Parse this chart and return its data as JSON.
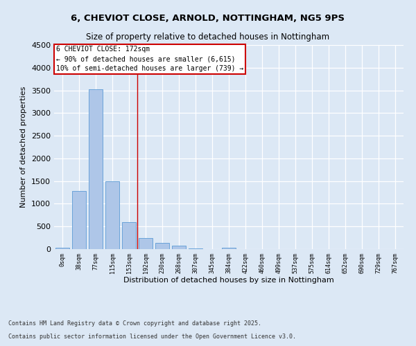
{
  "title1": "6, CHEVIOT CLOSE, ARNOLD, NOTTINGHAM, NG5 9PS",
  "title2": "Size of property relative to detached houses in Nottingham",
  "xlabel": "Distribution of detached houses by size in Nottingham",
  "ylabel": "Number of detached properties",
  "bar_labels": [
    "0sqm",
    "38sqm",
    "77sqm",
    "115sqm",
    "153sqm",
    "192sqm",
    "230sqm",
    "268sqm",
    "307sqm",
    "345sqm",
    "384sqm",
    "422sqm",
    "460sqm",
    "499sqm",
    "537sqm",
    "575sqm",
    "614sqm",
    "652sqm",
    "690sqm",
    "729sqm",
    "767sqm"
  ],
  "bar_values": [
    30,
    1280,
    3530,
    1490,
    600,
    250,
    130,
    80,
    20,
    5,
    30,
    0,
    0,
    0,
    0,
    0,
    0,
    0,
    0,
    0,
    0
  ],
  "bar_color": "#aec6e8",
  "bar_edge_color": "#5b9bd5",
  "property_label": "6 CHEVIOT CLOSE: 172sqm",
  "annotation_line1": "← 90% of detached houses are smaller (6,615)",
  "annotation_line2": "10% of semi-detached houses are larger (739) →",
  "ylim": [
    0,
    4500
  ],
  "bg_color": "#dce8f5",
  "footer1": "Contains HM Land Registry data © Crown copyright and database right 2025.",
  "footer2": "Contains public sector information licensed under the Open Government Licence v3.0.",
  "vline_pos": 4.5
}
